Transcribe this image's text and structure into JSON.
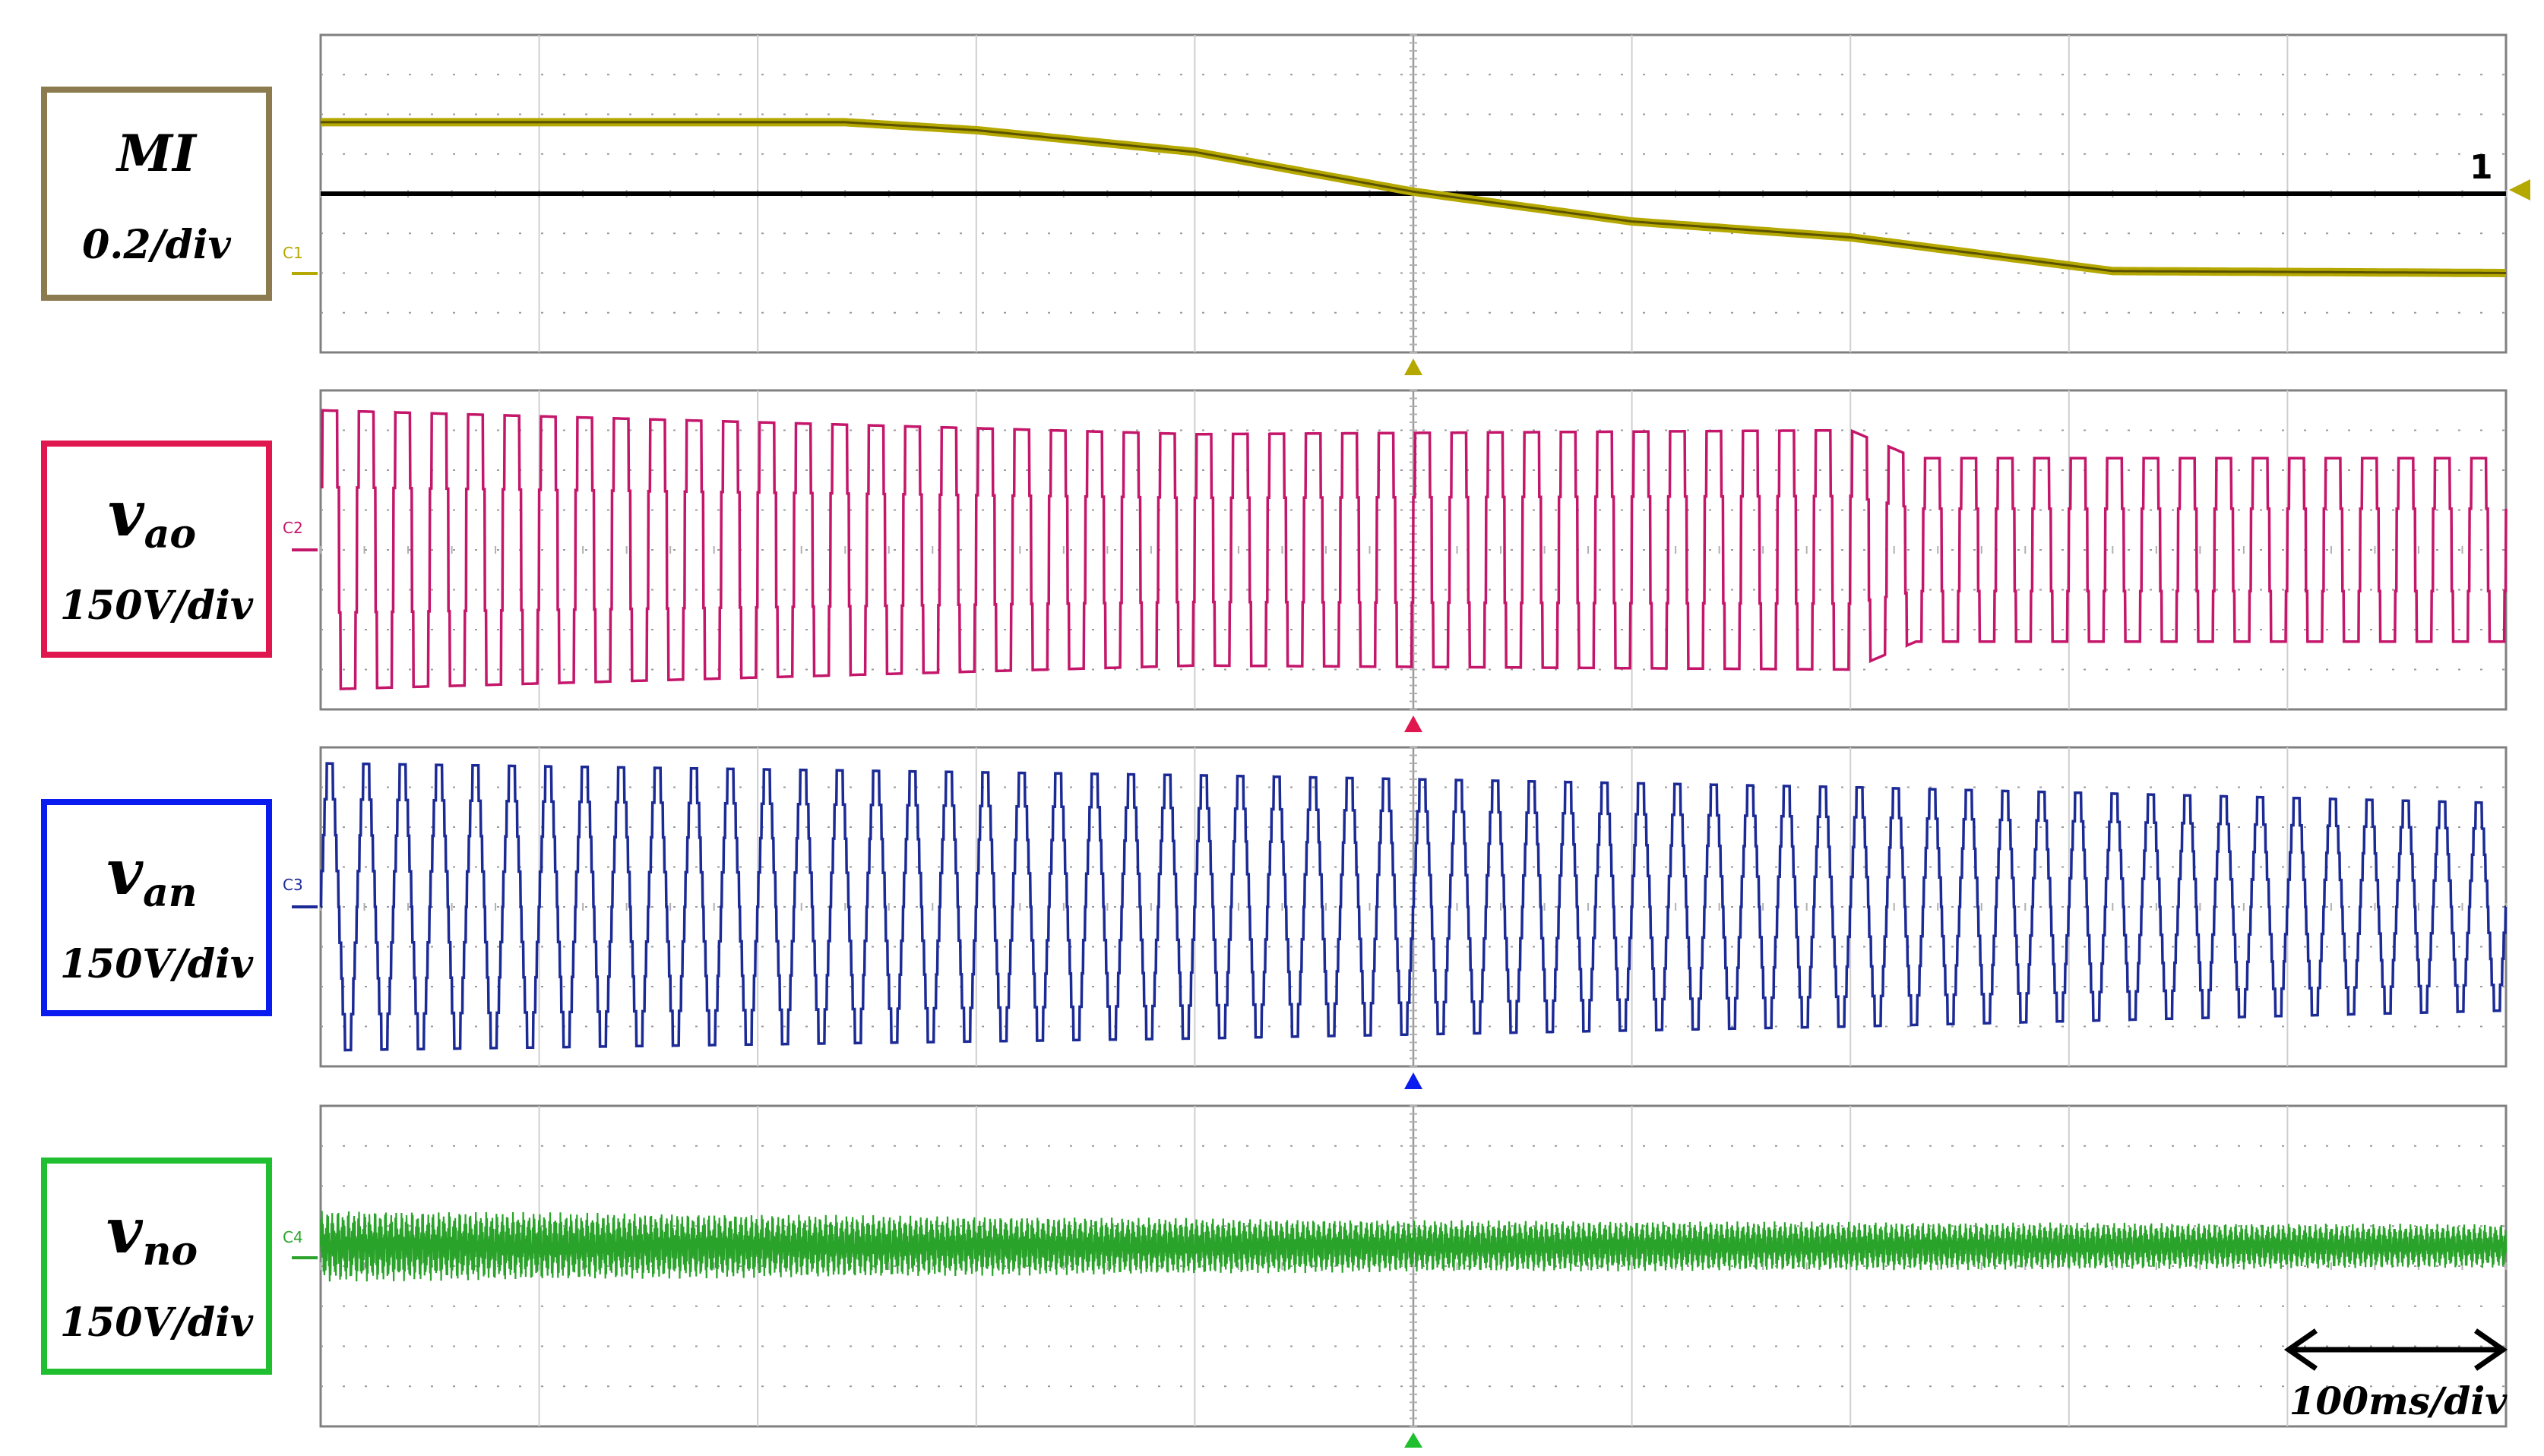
{
  "chart_data": {
    "type": "line",
    "time_scale": "100ms/div",
    "divisions": {
      "horizontal": 10,
      "vertical": 8
    },
    "panels": [
      {
        "id": "mi",
        "channel": "C1",
        "label_main": "MI",
        "label_sub": "",
        "scale": "0.2/div",
        "color": "#b5a800",
        "border_color": "#8b7b4e",
        "reference_marker": "1",
        "series": {
          "name": "MI",
          "x_unit": "ms",
          "y_unit": "div",
          "points": [
            [
              0,
              1.8
            ],
            [
              240,
              1.8
            ],
            [
              300,
              1.6
            ],
            [
              400,
              1.05
            ],
            [
              500,
              0.05
            ],
            [
              600,
              -0.7
            ],
            [
              700,
              -1.1
            ],
            [
              820,
              -1.95
            ],
            [
              1000,
              -2.0
            ]
          ]
        }
      },
      {
        "id": "vao",
        "channel": "C2",
        "label_main": "v",
        "label_sub": "ao",
        "scale": "150V/div",
        "color": "#c4166a",
        "border_color": "#e0174f",
        "series": {
          "name": "v_ao",
          "waveform": "stepped square",
          "cycles": 60,
          "amplitude_div": [
            [
              0,
              3.5
            ],
            [
              400,
              2.9
            ],
            [
              700,
              3.0
            ],
            [
              730,
              2.3
            ],
            [
              1000,
              2.3
            ]
          ]
        }
      },
      {
        "id": "van",
        "channel": "C3",
        "label_main": "v",
        "label_sub": "an",
        "scale": "150V/div",
        "color": "#1c2a96",
        "border_color": "#0a1bf0",
        "series": {
          "name": "v_an",
          "waveform": "stepped sine",
          "cycles": 60,
          "amplitude_div": [
            [
              0,
              3.6
            ],
            [
              400,
              3.3
            ],
            [
              700,
              3.0
            ],
            [
              1000,
              2.6
            ]
          ]
        }
      },
      {
        "id": "vno",
        "channel": "C4",
        "label_main": "v",
        "label_sub": "no",
        "scale": "150V/div",
        "color": "#2aa32a",
        "border_color": "#1fbf2f",
        "series": {
          "name": "v_no",
          "waveform": "high-frequency ripple",
          "offset_div": 0.5,
          "amplitude_div": [
            [
              0,
              0.9
            ],
            [
              500,
              0.65
            ],
            [
              1000,
              0.55
            ]
          ]
        }
      }
    ]
  }
}
